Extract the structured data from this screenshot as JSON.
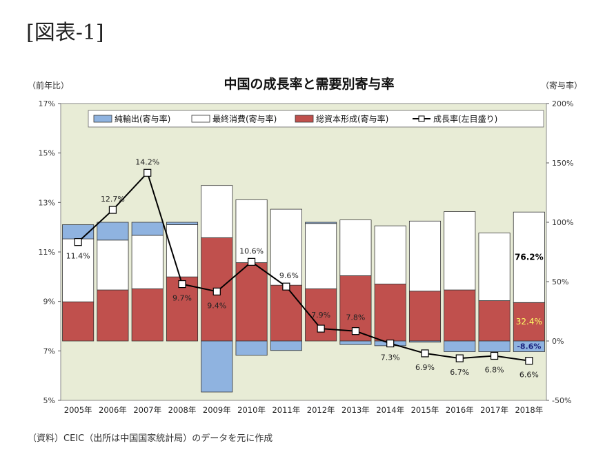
{
  "caption": "[図表-1]",
  "source": "（資料）CEIC（出所は中国国家統計局）のデータを元に作成",
  "chart_data": {
    "type": "bar",
    "title": "中国の成長率と需要別寄与率",
    "ylabel_left": "（前年比）",
    "ylabel_right": "（寄与率）",
    "categories": [
      "2005年",
      "2006年",
      "2007年",
      "2008年",
      "2009年",
      "2010年",
      "2011年",
      "2012年",
      "2013年",
      "2014年",
      "2015年",
      "2016年",
      "2017年",
      "2018年"
    ],
    "ylim_left": [
      5,
      17
    ],
    "yticks_left": [
      "5%",
      "7%",
      "9%",
      "11%",
      "13%",
      "15%",
      "17%"
    ],
    "ylim_right": [
      -50,
      200
    ],
    "yticks_right": [
      "-50%",
      "0%",
      "50%",
      "100%",
      "150%",
      "200%"
    ],
    "legend_position": "top",
    "series": [
      {
        "name": "純輸出(寄与率)",
        "kind": "bar",
        "axis": "right",
        "color": "#8fb3e0",
        "values": [
          12,
          15,
          11,
          2,
          -43,
          -12,
          -8,
          1,
          -3,
          -4,
          -1,
          -9,
          -9,
          -9
        ]
      },
      {
        "name": "最終消費(寄与率)",
        "kind": "bar",
        "axis": "right",
        "color": "#ffffff",
        "values": [
          53,
          42,
          45,
          44,
          44,
          53,
          64,
          55,
          47,
          49,
          59,
          66,
          57,
          76.2
        ]
      },
      {
        "name": "総資本形成(寄与率)",
        "kind": "bar",
        "axis": "right",
        "color": "#c0504d",
        "values": [
          33,
          43,
          44,
          54,
          87,
          66,
          47,
          44,
          55,
          48,
          42,
          43,
          34,
          32.4
        ]
      },
      {
        "name": "成長率(左目盛り)",
        "kind": "line",
        "axis": "left",
        "color": "#000000",
        "values": [
          11.4,
          12.7,
          14.2,
          9.7,
          9.4,
          10.6,
          9.6,
          7.9,
          7.8,
          7.3,
          6.9,
          6.7,
          6.8,
          6.6
        ],
        "labels": [
          "11.4%",
          "12.7%",
          "14.2%",
          "9.7%",
          "9.4%",
          "10.6%",
          "9.6%",
          "7.9%",
          "7.8%",
          "7.3%",
          "6.9%",
          "6.7%",
          "6.8%",
          "6.6%"
        ]
      }
    ],
    "annotations_2018": {
      "consumption": "76.2%",
      "capital": "32.4%",
      "net_exports": "-8.6%"
    },
    "colors": {
      "plot_background": "#e8ecd6",
      "capital_label": "#ffff66"
    }
  }
}
